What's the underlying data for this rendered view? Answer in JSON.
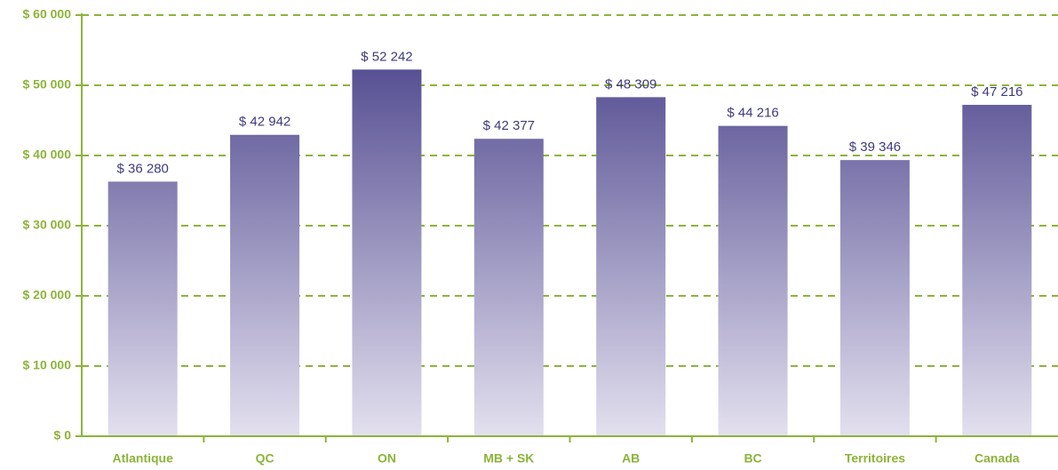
{
  "chart_data": {
    "type": "bar",
    "categories": [
      "Atlantique",
      "QC",
      "ON",
      "MB + SK",
      "AB",
      "BC",
      "Territoires",
      "Canada"
    ],
    "values": [
      36280,
      42942,
      52242,
      42377,
      48309,
      44216,
      39346,
      47216
    ],
    "value_labels": [
      "$ 36 280",
      "$ 42 942",
      "$ 52 242",
      "$ 42 377",
      "$ 48 309",
      "$ 44 216",
      "$ 39 346",
      "$ 47 216"
    ],
    "color": [
      "#433b86",
      "#e3e0ef"
    ],
    "axis_color": "#8db33a",
    "label_color": "#3d3a7c",
    "ylim": [
      0,
      60000
    ],
    "yticks": [
      {
        "value": 0,
        "label": "$ 0"
      },
      {
        "value": 10000,
        "label": "$ 10 000"
      },
      {
        "value": 20000,
        "label": "$ 20 000"
      },
      {
        "value": 30000,
        "label": "$ 30 000"
      },
      {
        "value": 40000,
        "label": "$ 40 000"
      },
      {
        "value": 50000,
        "label": "$ 50 000"
      },
      {
        "value": 60000,
        "label": "$ 60 000"
      }
    ],
    "grid": true
  }
}
